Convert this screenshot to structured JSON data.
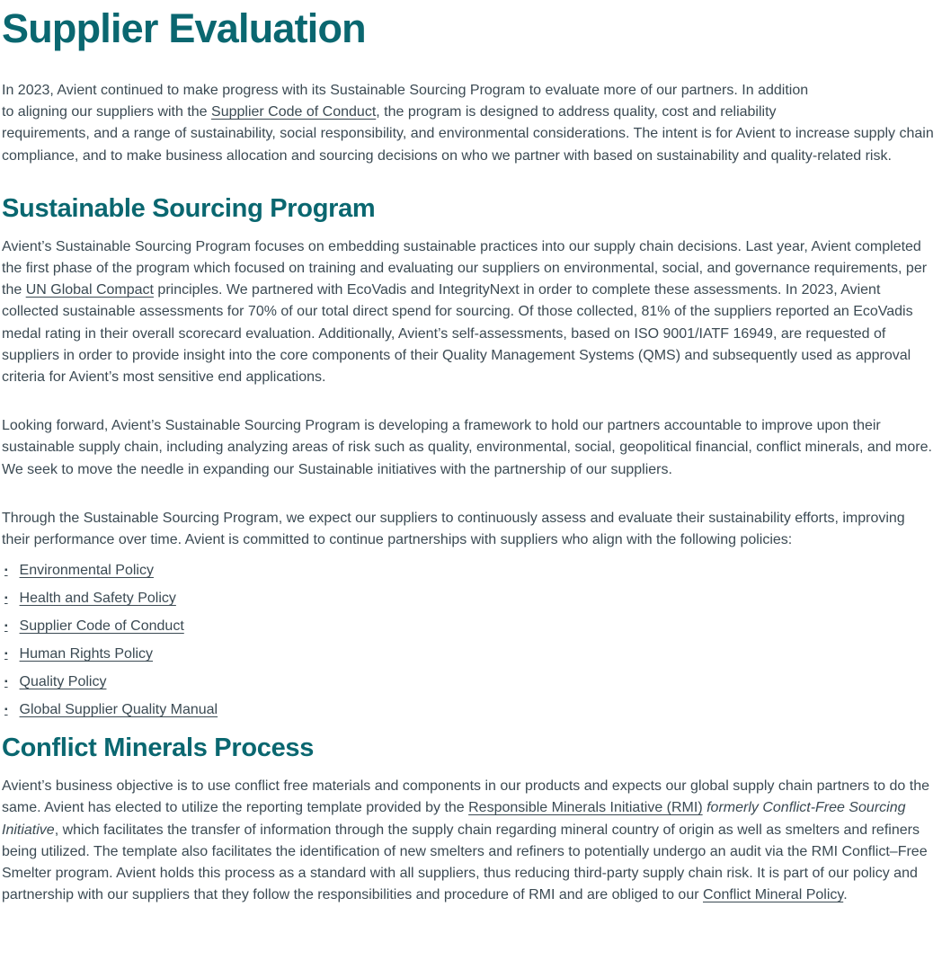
{
  "page_title": "Supplier Evaluation",
  "colors": {
    "heading_teal": "#0A6770",
    "body_text": "#3B4A53"
  },
  "icons": {
    "bullet": "▪"
  },
  "intro": {
    "segments": [
      {
        "t": "In 2023, Avient continued to make progress with its Sustainable Sourcing Program to evaluate more of our partners. In addition"
      },
      {
        "br": true
      },
      {
        "t": "to aligning our suppliers with the "
      },
      {
        "t": "Supplier Code of Conduct",
        "link": true,
        "name": "supplier-code-of-conduct-link"
      },
      {
        "t": ", the program is designed to address quality, cost and reliability"
      },
      {
        "br": true
      },
      {
        "t": "requirements, and a range of sustainability, social responsibility, and environmental considerations. The intent is for Avient to increase supply chain compliance, and to make business allocation and sourcing decisions on who we partner with based on sustainability and quality-related risk."
      }
    ]
  },
  "sustainable_sourcing": {
    "heading": "Sustainable Sourcing Program",
    "paragraph1": {
      "segments": [
        {
          "t": "Avient’s Sustainable Sourcing Program focuses on embedding sustainable practices into our supply chain decisions. Last year, Avient completed the first phase of the program which focused on training and evaluating our suppliers on environmental, social, and governance requirements, per the "
        },
        {
          "t": "UN Global Compact",
          "link": true,
          "name": "un-global-compact-link"
        },
        {
          "t": " principles. We partnered with EcoVadis and IntegrityNext in order to complete these assessments. In 2023, Avient collected sustainable assessments for 70% of our total direct spend for sourcing. Of those collected, 81% of the suppliers reported an EcoVadis medal rating in their overall scorecard evaluation. Additionally, Avient’s self-assessments, based on ISO 9001/IATF 16949, are requested of suppliers in order to provide insight into the core components of their Quality Management Systems (QMS) and subsequently used as approval criteria for Avient’s most sensitive end applications."
        }
      ]
    },
    "paragraph2": {
      "segments": [
        {
          "t": "Looking forward, Avient’s Sustainable Sourcing Program is developing a framework to hold our partners accountable to improve upon their sustainable supply chain, including analyzing areas of risk such as quality, environmental, social, geopolitical financial, conflict minerals, and more. We seek to move the needle in expanding our Sustainable initiatives with the partnership of our suppliers."
        }
      ]
    },
    "paragraph3": {
      "segments": [
        {
          "t": "Through the Sustainable Sourcing Program, we expect our suppliers to continuously assess and evaluate their sustainability efforts, improving their performance over time. Avient is committed to continue partnerships with suppliers who align with the following policies:"
        }
      ]
    },
    "policies": {
      "items": [
        {
          "label": "Environmental Policy"
        },
        {
          "label": "Health and Safety Policy"
        },
        {
          "label": "Supplier Code of Conduct"
        },
        {
          "label": "Human Rights Policy"
        },
        {
          "label": "Quality Policy"
        },
        {
          "label": "Global Supplier Quality Manual"
        }
      ]
    }
  },
  "conflict_minerals": {
    "heading": "Conflict Minerals Process",
    "paragraph": {
      "segments": [
        {
          "t": "Avient’s business objective is to use conflict free materials and components in our products and expects our global supply chain partners to do the same. Avient has elected to utilize the reporting template provided by the "
        },
        {
          "t": "Responsible Minerals Initiative (RMI)",
          "link": true,
          "name": "responsible-minerals-initiative-link"
        },
        {
          "t": " "
        },
        {
          "t": "formerly Conflict-Free Sourcing Initiative",
          "italic": true
        },
        {
          "t": ", which facilitates the transfer of information through the supply chain regarding mineral country of origin as well as smelters and refiners being utilized. The template also facilitates the identification of new smelters and refiners to potentially undergo an audit via the RMI Conflict–Free Smelter program. Avient holds this process as a standard with all suppliers, thus reducing third-party supply chain risk. It is part of our policy and partnership with our suppliers that they follow the responsibilities and procedure of RMI and are obliged to our "
        },
        {
          "t": "Conflict Mineral Policy",
          "link": true,
          "name": "conflict-mineral-policy-link"
        },
        {
          "t": "."
        }
      ]
    }
  }
}
